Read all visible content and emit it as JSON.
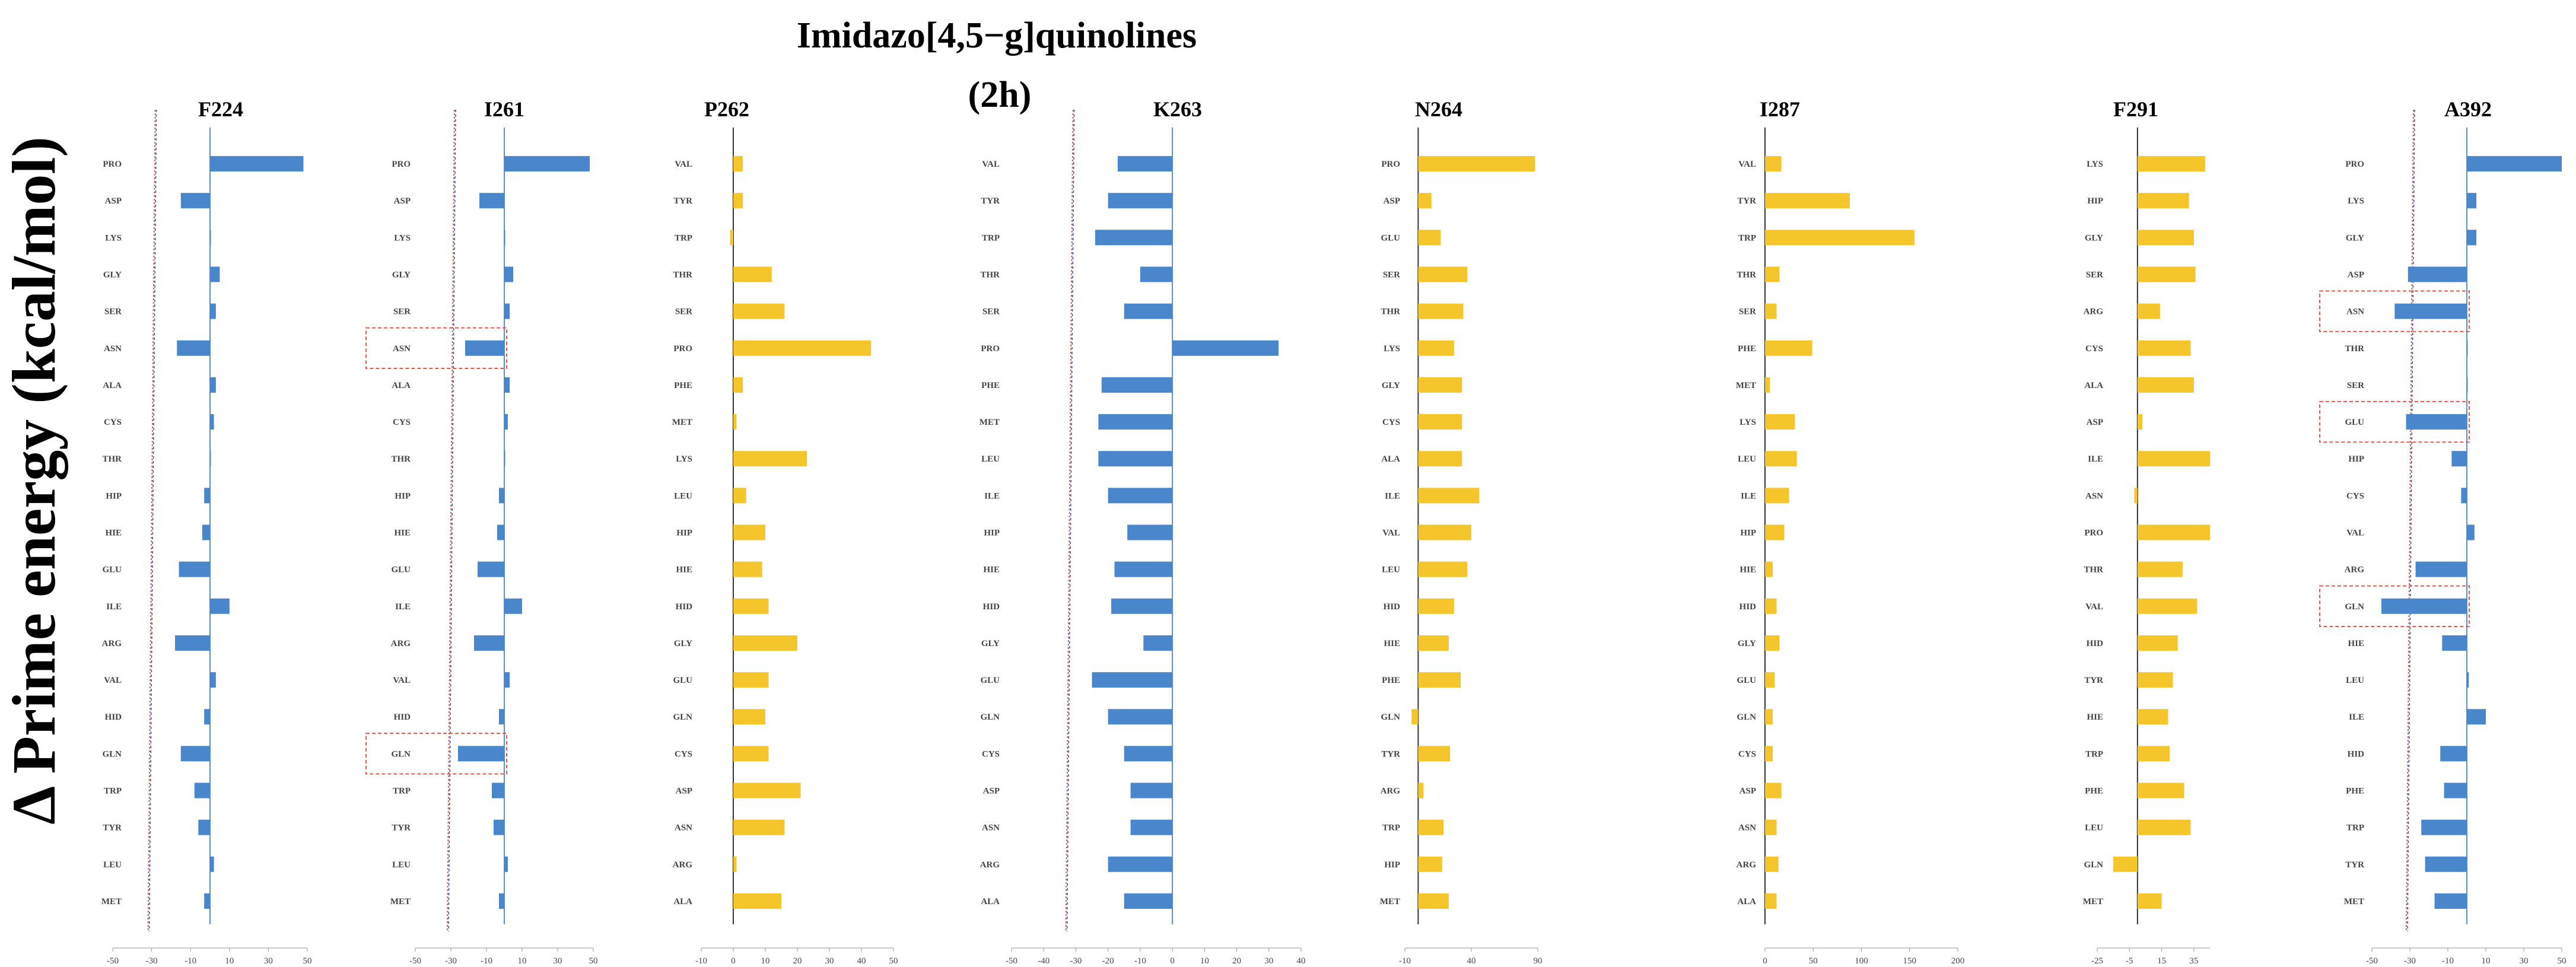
{
  "main_title_line1": "Imidazo[4,5−g]quinolines",
  "main_title_line2": "(2h)",
  "ylabel": "Δ Prime energy (kcal/mol)",
  "colors": {
    "blue": "#4a86cc",
    "yellow": "#f5c52c",
    "ref_line": "#6b4f8a",
    "box": "#e8584a"
  },
  "chart_data": [
    {
      "type": "bar",
      "orientation": "horizontal",
      "title": "F224",
      "color": "blue",
      "xlim": [
        -50,
        50
      ],
      "xticks": [
        -50,
        -30,
        -10,
        10,
        30,
        50
      ],
      "ref_line": -30,
      "categories": [
        "PRO",
        "ASP",
        "LYS",
        "GLY",
        "SER",
        "ASN",
        "ALA",
        "CYS",
        "THR",
        "HIP",
        "HIE",
        "GLU",
        "ILE",
        "ARG",
        "VAL",
        "HID",
        "GLN",
        "TRP",
        "TYR",
        "LEU",
        "MET"
      ],
      "values": [
        48,
        -15,
        0,
        5,
        3,
        -17,
        3,
        2,
        0,
        -3,
        -4,
        -16,
        10,
        -18,
        3,
        -3,
        -15,
        -8,
        -6,
        2,
        -3
      ],
      "highlight": []
    },
    {
      "type": "bar",
      "orientation": "horizontal",
      "title": "I261",
      "color": "blue",
      "xlim": [
        -50,
        50
      ],
      "xticks": [
        -50,
        -30,
        -10,
        10,
        30,
        50
      ],
      "ref_line": -30,
      "categories": [
        "PRO",
        "ASP",
        "LYS",
        "GLY",
        "SER",
        "ASN",
        "ALA",
        "CYS",
        "THR",
        "HIP",
        "HIE",
        "GLU",
        "ILE",
        "ARG",
        "VAL",
        "HID",
        "GLN",
        "TRP",
        "TYR",
        "LEU",
        "MET"
      ],
      "values": [
        48,
        -14,
        0,
        5,
        3,
        -22,
        3,
        2,
        0,
        -3,
        -4,
        -15,
        10,
        -17,
        3,
        -3,
        -26,
        -7,
        -6,
        2,
        -3
      ],
      "highlight": [
        "ASN",
        "GLN"
      ]
    },
    {
      "type": "bar",
      "orientation": "horizontal",
      "title": "P262",
      "color": "yellow",
      "xlim": [
        -10,
        50
      ],
      "xticks": [
        -10,
        0,
        10,
        20,
        30,
        40,
        50
      ],
      "categories": [
        "VAL",
        "TYR",
        "TRP",
        "THR",
        "SER",
        "PRO",
        "PHE",
        "MET",
        "LYS",
        "LEU",
        "HIP",
        "HIE",
        "HID",
        "GLY",
        "GLU",
        "GLN",
        "CYS",
        "ASP",
        "ASN",
        "ARG",
        "ALA"
      ],
      "values": [
        3,
        3,
        -1,
        12,
        16,
        43,
        3,
        1,
        23,
        4,
        10,
        9,
        11,
        20,
        11,
        10,
        11,
        21,
        16,
        1,
        15
      ],
      "highlight": []
    },
    {
      "type": "bar",
      "orientation": "horizontal",
      "title": "K263",
      "color": "blue",
      "xlim": [
        -50,
        40
      ],
      "xticks": [
        -50,
        -40,
        -30,
        -20,
        -10,
        0,
        10,
        20,
        30,
        40
      ],
      "ref_line": -32,
      "categories": [
        "VAL",
        "TYR",
        "TRP",
        "THR",
        "SER",
        "PRO",
        "PHE",
        "MET",
        "LEU",
        "ILE",
        "HIP",
        "HIE",
        "HID",
        "GLY",
        "GLU",
        "GLN",
        "CYS",
        "ASP",
        "ASN",
        "ARG",
        "ALA"
      ],
      "values": [
        -17,
        -20,
        -24,
        -10,
        -15,
        33,
        -22,
        -23,
        -23,
        -20,
        -14,
        -18,
        -19,
        -9,
        -25,
        -20,
        -15,
        -13,
        -13,
        -20,
        -15
      ],
      "highlight": []
    },
    {
      "type": "bar",
      "orientation": "horizontal",
      "title": "N264",
      "color": "yellow",
      "xlim": [
        -10,
        90
      ],
      "xticks": [
        -10,
        40,
        90
      ],
      "categories": [
        "PRO",
        "ASP",
        "GLU",
        "SER",
        "THR",
        "LYS",
        "GLY",
        "CYS",
        "ALA",
        "ILE",
        "VAL",
        "LEU",
        "HID",
        "HIE",
        "PHE",
        "GLN",
        "TYR",
        "ARG",
        "TRP",
        "HIP",
        "MET"
      ],
      "values": [
        88,
        10,
        17,
        37,
        34,
        27,
        33,
        33,
        33,
        46,
        40,
        37,
        27,
        23,
        32,
        -5,
        24,
        4,
        19,
        18,
        23
      ],
      "highlight": []
    },
    {
      "type": "bar",
      "orientation": "horizontal",
      "title": "I287",
      "color": "yellow",
      "xlim": [
        0,
        200
      ],
      "xticks": [
        0,
        50,
        100,
        150,
        200
      ],
      "categories": [
        "VAL",
        "TYR",
        "TRP",
        "THR",
        "SER",
        "PHE",
        "MET",
        "LYS",
        "LEU",
        "ILE",
        "HIP",
        "HIE",
        "HID",
        "GLY",
        "GLU",
        "GLN",
        "CYS",
        "ASP",
        "ASN",
        "ARG",
        "ALA"
      ],
      "values": [
        17,
        88,
        155,
        15,
        12,
        49,
        5,
        31,
        33,
        25,
        20,
        8,
        12,
        15,
        10,
        8,
        8,
        17,
        12,
        14,
        12
      ],
      "highlight": []
    },
    {
      "type": "bar",
      "orientation": "horizontal",
      "title": "F291",
      "color": "yellow",
      "xlim": [
        -25,
        45
      ],
      "xticks": [
        -25,
        -5,
        15,
        35
      ],
      "categories": [
        "LYS",
        "HIP",
        "GLY",
        "SER",
        "ARG",
        "CYS",
        "ALA",
        "ASP",
        "ILE",
        "ASN",
        "PRO",
        "THR",
        "VAL",
        "HID",
        "TYR",
        "HIE",
        "TRP",
        "PHE",
        "LEU",
        "GLN",
        "MET"
      ],
      "values": [
        42,
        32,
        35,
        36,
        14,
        33,
        35,
        3,
        45,
        -2,
        45,
        28,
        37,
        25,
        22,
        19,
        20,
        29,
        33,
        -15,
        15
      ],
      "highlight": []
    },
    {
      "type": "bar",
      "orientation": "horizontal",
      "title": "A392",
      "color": "blue",
      "xlim": [
        -50,
        50
      ],
      "xticks": [
        -50,
        -30,
        -10,
        10,
        30,
        50
      ],
      "ref_line": -30,
      "categories": [
        "PRO",
        "LYS",
        "GLY",
        "ASP",
        "ASN",
        "THR",
        "SER",
        "GLU",
        "HIP",
        "CYS",
        "VAL",
        "ARG",
        "GLN",
        "HIE",
        "LEU",
        "ILE",
        "HID",
        "PHE",
        "TRP",
        "TYR",
        "MET"
      ],
      "values": [
        50,
        5,
        5,
        -31,
        -38,
        0,
        0,
        -32,
        -8,
        -3,
        4,
        -27,
        -45,
        -13,
        1,
        10,
        -14,
        -12,
        -24,
        -22,
        -17
      ],
      "highlight": [
        "ASN",
        "GLU",
        "GLN"
      ]
    }
  ]
}
